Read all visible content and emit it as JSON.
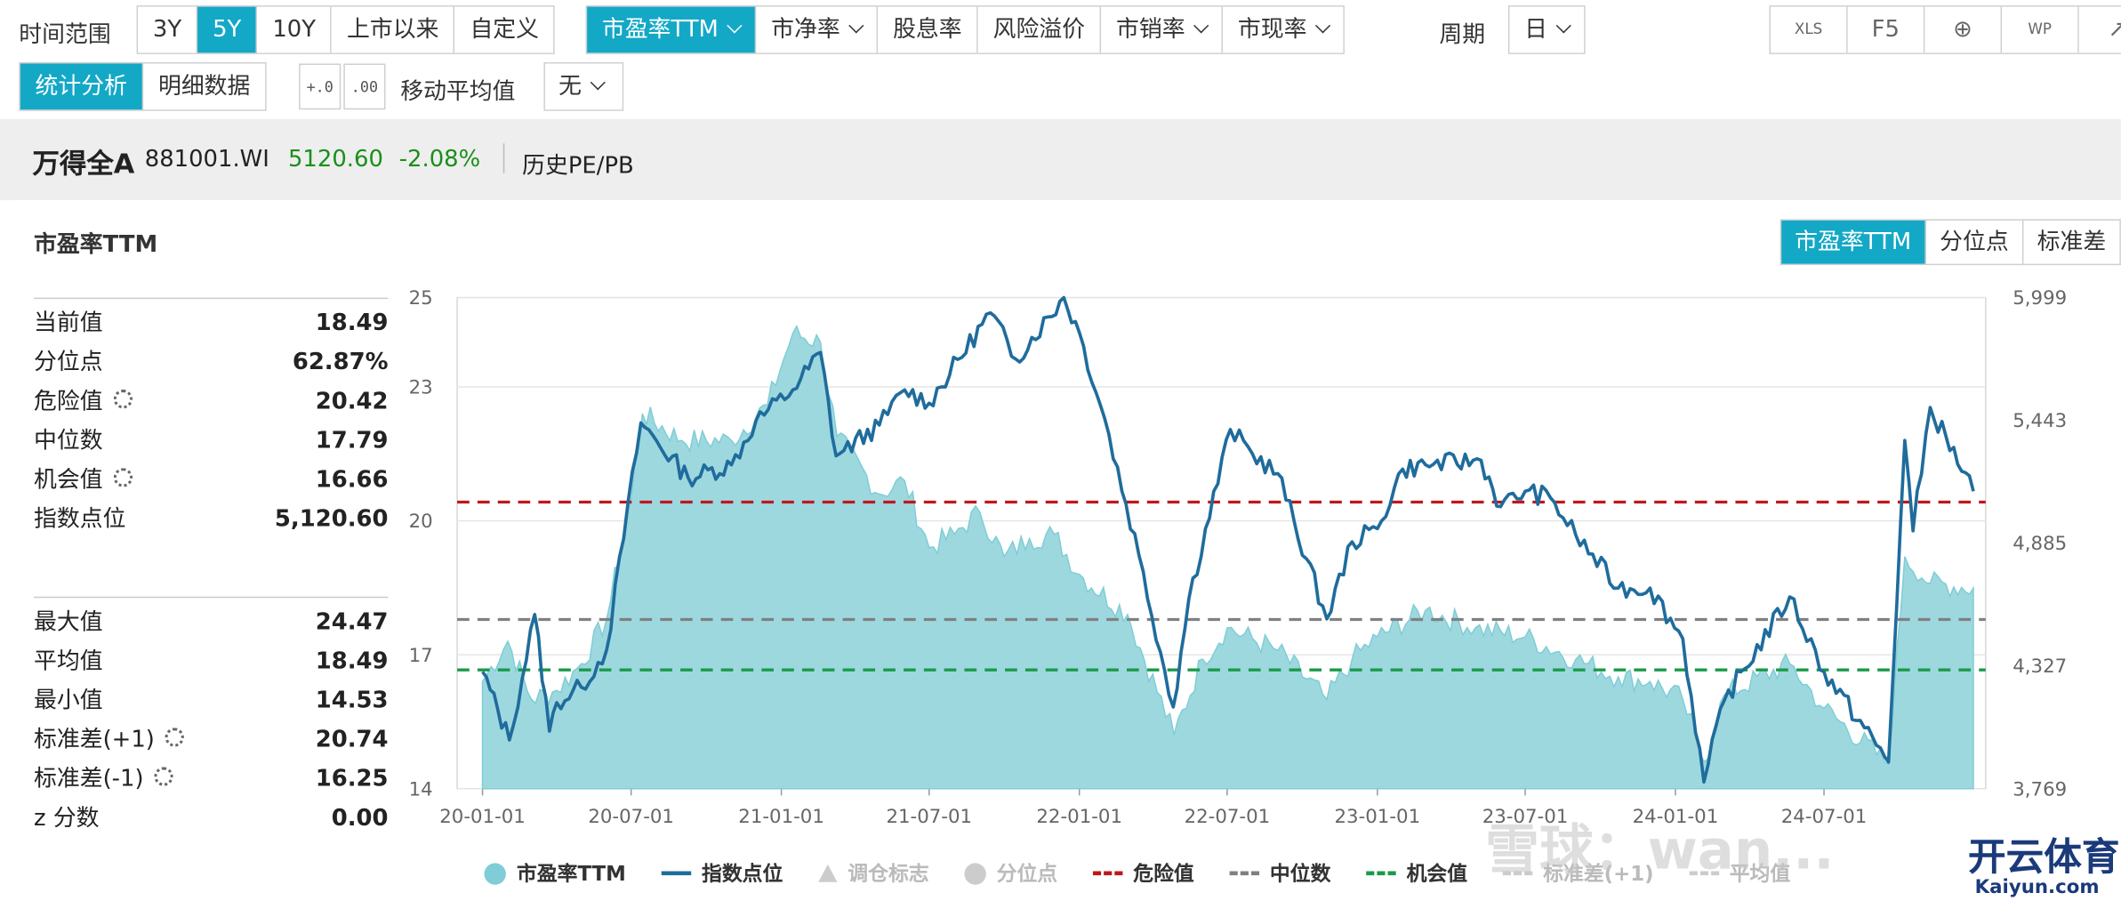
{
  "toolbar": {
    "time_range_label": "时间范围",
    "ranges": [
      "3Y",
      "5Y",
      "10Y",
      "上市以来",
      "自定义"
    ],
    "active_range": "5Y",
    "metrics": [
      "市盈率TTM",
      "市净率",
      "股息率",
      "风险溢价",
      "市销率",
      "市现率"
    ],
    "active_metric": "市盈率TTM",
    "period_label": "周期",
    "period_value": "日",
    "right_icons": [
      "XLS",
      "F5",
      "⊕",
      "WP",
      "↗"
    ],
    "mode_tabs": [
      "统计分析",
      "明细数据"
    ],
    "active_mode": "统计分析",
    "decimal_icons": [
      "+.0 .00",
      "→.00 .0"
    ],
    "ma_label": "移动平均值",
    "ma_value": "无"
  },
  "strip": {
    "name": "万得全A",
    "code": "881001.WI",
    "price": "5120.60",
    "change": "-2.08%",
    "link": "历史PE/PB",
    "price_color": "#1a8f1a"
  },
  "panel": {
    "title": "市盈率TTM",
    "tabs": [
      "市盈率TTM",
      "分位点",
      "标准差"
    ],
    "active_tab": "市盈率TTM",
    "stats_top": [
      {
        "label": "当前值",
        "value": "18.49",
        "gear": false
      },
      {
        "label": "分位点",
        "value": "62.87%",
        "gear": false
      },
      {
        "label": "危险值",
        "value": "20.42",
        "gear": true
      },
      {
        "label": "中位数",
        "value": "17.79",
        "gear": false
      },
      {
        "label": "机会值",
        "value": "16.66",
        "gear": true
      },
      {
        "label": "指数点位",
        "value": "5,120.60",
        "gear": false
      }
    ],
    "stats_bottom": [
      {
        "label": "最大值",
        "value": "24.47",
        "gear": false
      },
      {
        "label": "平均值",
        "value": "18.49",
        "gear": false
      },
      {
        "label": "最小值",
        "value": "14.53",
        "gear": false
      },
      {
        "label": "标准差(+1)",
        "value": "20.74",
        "gear": true
      },
      {
        "label": "标准差(-1)",
        "value": "16.25",
        "gear": true
      },
      {
        "label": "z 分数",
        "value": "0.00",
        "gear": false
      }
    ]
  },
  "legend": [
    {
      "label": "市盈率TTM",
      "kind": "dot",
      "color": "#7fcdd6",
      "muted": false
    },
    {
      "label": "指数点位",
      "kind": "line",
      "color": "#1f6c9c",
      "muted": false
    },
    {
      "label": "调仓标志",
      "kind": "tri",
      "color": "#cccccc",
      "muted": true
    },
    {
      "label": "分位点",
      "kind": "dot",
      "color": "#cccccc",
      "muted": true
    },
    {
      "label": "危险值",
      "kind": "dash",
      "color": "#c0171c",
      "muted": false
    },
    {
      "label": "中位数",
      "kind": "dash",
      "color": "#808080",
      "muted": false
    },
    {
      "label": "机会值",
      "kind": "dash",
      "color": "#1a9a4a",
      "muted": false
    },
    {
      "label": "标准差(+1)",
      "kind": "dash",
      "color": "#cccccc",
      "muted": true
    },
    {
      "label": "平均值",
      "kind": "dash",
      "color": "#cccccc",
      "muted": true
    }
  ],
  "watermarks": [
    "雪球：wan...",
    "开云体育",
    "Kaiyun.com"
  ],
  "chart_data": {
    "type": "area",
    "xlabel": "",
    "ylabel": "",
    "x_ticks": [
      "20-01-01",
      "20-07-01",
      "21-01-01",
      "21-07-01",
      "22-01-01",
      "22-07-01",
      "23-01-01",
      "23-07-01",
      "24-01-01",
      "24-07-01"
    ],
    "y_left_ticks": [
      14,
      17,
      20,
      23,
      25
    ],
    "y_left_range": [
      14,
      25
    ],
    "y_right_ticks": [
      "3,769",
      "4,327",
      "4,885",
      "5,443",
      "5,999"
    ],
    "y_right_range": [
      3769,
      5999
    ],
    "reference_lines": [
      {
        "name": "危险值",
        "value": 20.42,
        "color": "#c0171c"
      },
      {
        "name": "中位数",
        "value": 17.79,
        "color": "#808080"
      },
      {
        "name": "机会值",
        "value": 16.66,
        "color": "#1a9a4a"
      }
    ],
    "series": [
      {
        "name": "市盈率TTM",
        "axis": "left",
        "color": "#7fcdd6",
        "points": [
          [
            "2020-01-01",
            16.4
          ],
          [
            "2020-02-01",
            17.3
          ],
          [
            "2020-03-01",
            16.0
          ],
          [
            "2020-04-01",
            16.2
          ],
          [
            "2020-05-01",
            16.8
          ],
          [
            "2020-06-01",
            17.8
          ],
          [
            "2020-07-01",
            20.5
          ],
          [
            "2020-07-15",
            22.4
          ],
          [
            "2020-09-01",
            21.8
          ],
          [
            "2020-11-01",
            21.8
          ],
          [
            "2020-12-15",
            22.6
          ],
          [
            "2021-01-15",
            24.2
          ],
          [
            "2021-02-18",
            24.0
          ],
          [
            "2021-03-10",
            21.9
          ],
          [
            "2021-05-01",
            20.6
          ],
          [
            "2021-06-01",
            20.9
          ],
          [
            "2021-07-01",
            19.4
          ],
          [
            "2021-08-01",
            19.7
          ],
          [
            "2021-09-01",
            20.2
          ],
          [
            "2021-10-01",
            19.2
          ],
          [
            "2021-11-01",
            19.6
          ],
          [
            "2021-12-01",
            19.7
          ],
          [
            "2022-01-01",
            18.8
          ],
          [
            "2022-03-01",
            17.9
          ],
          [
            "2022-04-27",
            15.2
          ],
          [
            "2022-06-01",
            16.9
          ],
          [
            "2022-07-01",
            17.6
          ],
          [
            "2022-09-01",
            17.1
          ],
          [
            "2022-10-31",
            16.0
          ],
          [
            "2022-12-01",
            16.9
          ],
          [
            "2023-01-01",
            17.4
          ],
          [
            "2023-03-01",
            18.0
          ],
          [
            "2023-05-01",
            17.6
          ],
          [
            "2023-07-01",
            17.4
          ],
          [
            "2023-09-01",
            16.9
          ],
          [
            "2023-10-23",
            16.5
          ],
          [
            "2023-12-01",
            16.4
          ],
          [
            "2024-01-10",
            16.0
          ],
          [
            "2024-02-05",
            14.6
          ],
          [
            "2024-03-01",
            16.1
          ],
          [
            "2024-05-20",
            16.8
          ],
          [
            "2024-07-01",
            15.8
          ],
          [
            "2024-09-18",
            14.55
          ],
          [
            "2024-10-08",
            19.2
          ],
          [
            "2024-11-08",
            18.6
          ],
          [
            "2024-12-31",
            18.49
          ]
        ]
      },
      {
        "name": "指数点位",
        "axis": "right",
        "color": "#1f6c9c",
        "points": [
          [
            "2020-01-01",
            4300
          ],
          [
            "2020-02-03",
            3990
          ],
          [
            "2020-03-05",
            4560
          ],
          [
            "2020-03-23",
            4030
          ],
          [
            "2020-04-01",
            4160
          ],
          [
            "2020-05-01",
            4230
          ],
          [
            "2020-06-01",
            4400
          ],
          [
            "2020-07-13",
            5430
          ],
          [
            "2020-09-09",
            5180
          ],
          [
            "2020-11-01",
            5240
          ],
          [
            "2020-12-01",
            5440
          ],
          [
            "2021-01-15",
            5580
          ],
          [
            "2021-02-18",
            5750
          ],
          [
            "2021-03-09",
            5280
          ],
          [
            "2021-05-01",
            5420
          ],
          [
            "2021-06-01",
            5580
          ],
          [
            "2021-07-01",
            5520
          ],
          [
            "2021-09-14",
            5930
          ],
          [
            "2021-10-15",
            5720
          ],
          [
            "2021-12-13",
            6000
          ],
          [
            "2022-01-01",
            5840
          ],
          [
            "2022-02-01",
            5450
          ],
          [
            "2022-03-15",
            4830
          ],
          [
            "2022-04-26",
            4140
          ],
          [
            "2022-05-15",
            4630
          ],
          [
            "2022-07-05",
            5400
          ],
          [
            "2022-08-01",
            5290
          ],
          [
            "2022-09-01",
            5200
          ],
          [
            "2022-10-31",
            4540
          ],
          [
            "2022-12-01",
            4890
          ],
          [
            "2023-01-01",
            4950
          ],
          [
            "2023-02-01",
            5220
          ],
          [
            "2023-03-01",
            5240
          ],
          [
            "2023-05-08",
            5260
          ],
          [
            "2023-06-01",
            5050
          ],
          [
            "2023-07-01",
            5120
          ],
          [
            "2023-08-01",
            5090
          ],
          [
            "2023-09-01",
            4920
          ],
          [
            "2023-10-23",
            4680
          ],
          [
            "2023-12-01",
            4680
          ],
          [
            "2024-01-10",
            4450
          ],
          [
            "2024-02-05",
            3800
          ],
          [
            "2024-03-01",
            4170
          ],
          [
            "2024-05-20",
            4640
          ],
          [
            "2024-07-01",
            4300
          ],
          [
            "2024-09-18",
            3890
          ],
          [
            "2024-10-08",
            5350
          ],
          [
            "2024-10-18",
            4940
          ],
          [
            "2024-11-08",
            5500
          ],
          [
            "2024-12-31",
            5120
          ]
        ]
      }
    ]
  }
}
